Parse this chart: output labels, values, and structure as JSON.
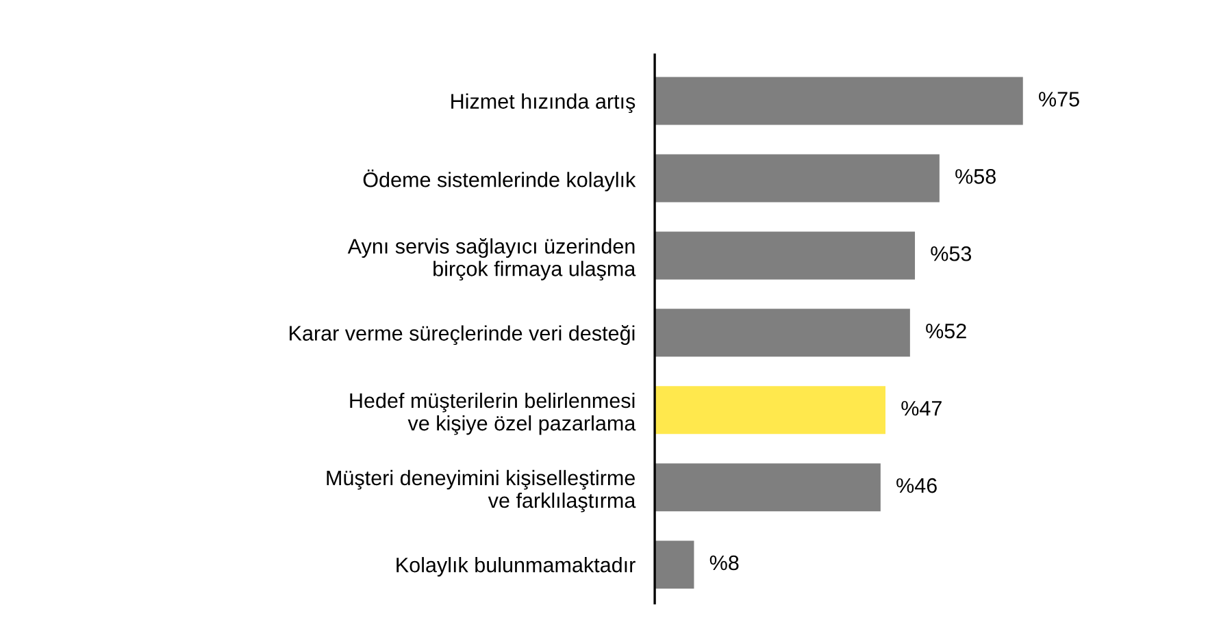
{
  "chart_data": {
    "type": "bar",
    "orientation": "horizontal",
    "categories": [
      "Hizmet hızında artış",
      "Ödeme sistemlerinde kolaylık",
      "Aynı servis sağlayıcı üzerinden\nbirçok firmaya ulaşma",
      "Karar verme süreçlerinde veri desteği",
      "Hedef müşterilerin belirlenmesi\nve kişiye özel pazarlama",
      "Müşteri deneyimini kişiselleştirme\nve farklılaştırma",
      "Kolaylık bulunmamaktadır"
    ],
    "values": [
      75,
      58,
      53,
      52,
      47,
      46,
      8
    ],
    "colors": [
      "#7f7f7f",
      "#7f7f7f",
      "#7f7f7f",
      "#7f7f7f",
      "#ffe84d",
      "#7f7f7f",
      "#7f7f7f"
    ],
    "value_labels": [
      "%75",
      "%58",
      "%53",
      "%52",
      "%47",
      "%46",
      "%8"
    ],
    "grid": false,
    "legend": false
  }
}
